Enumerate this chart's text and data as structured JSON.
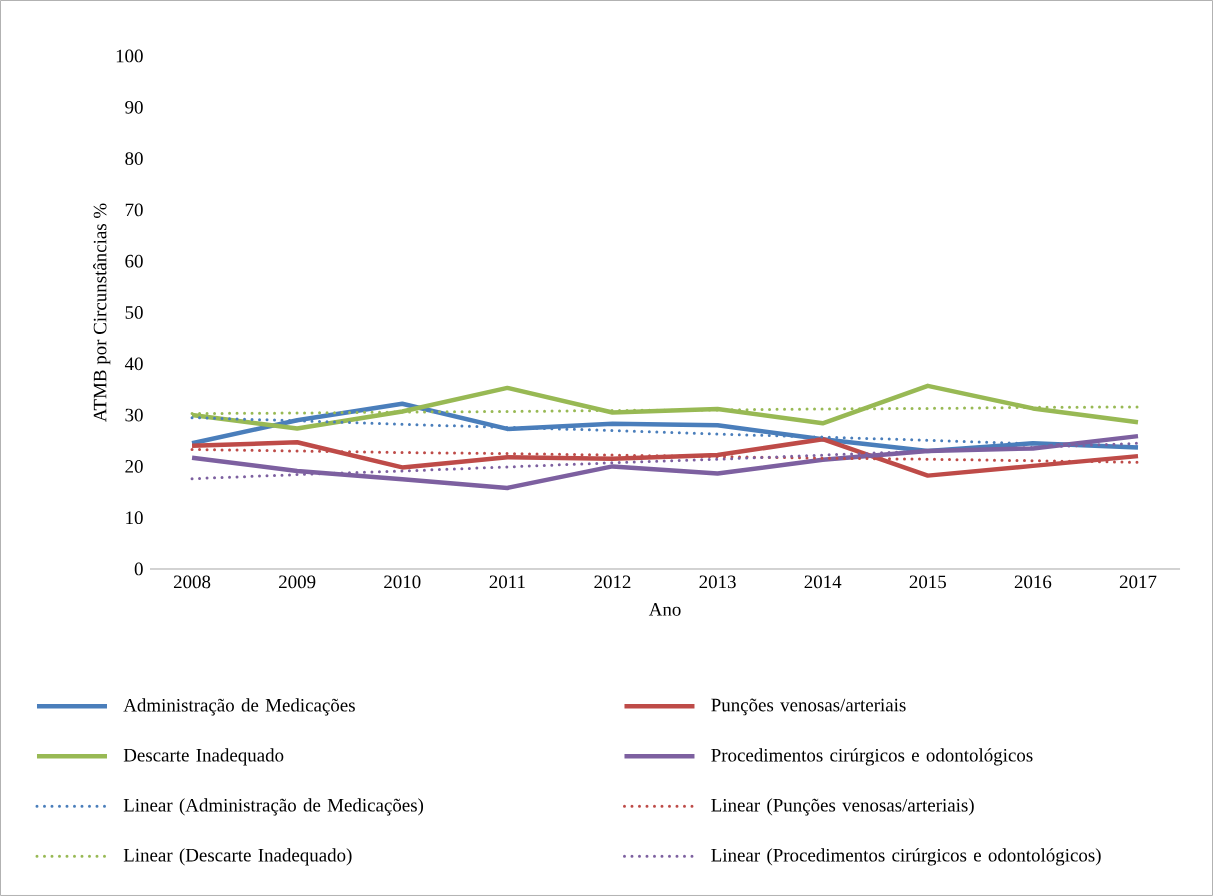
{
  "chart_data": {
    "type": "line",
    "xlabel": "Ano",
    "ylabel": "ATMB por Circunstâncias %",
    "x": [
      2008,
      2009,
      2010,
      2011,
      2012,
      2013,
      2014,
      2015,
      2016,
      2017
    ],
    "xlim": [
      2007.6,
      2017.4
    ],
    "xticks": [
      2008,
      2009,
      2010,
      2011,
      2012,
      2013,
      2014,
      2015,
      2016,
      2017
    ],
    "ylim": [
      0,
      100
    ],
    "yticks": [
      0,
      10,
      20,
      30,
      40,
      50,
      60,
      70,
      80,
      90,
      100
    ],
    "grid": false,
    "legend": "bottom",
    "marker": "none",
    "series": [
      {
        "name": "Administração de Medicações",
        "color": "#4a7ebb",
        "line_style": "solid",
        "values": [
          24.5,
          29,
          32.2,
          27.3,
          28.3,
          28,
          25.3,
          23,
          24.5,
          23.7
        ]
      },
      {
        "name": "Punções venosas/arteriais",
        "color": "#be4b48",
        "line_style": "solid",
        "values": [
          24,
          24.7,
          19.8,
          21.8,
          21.5,
          22.2,
          25.3,
          18.2,
          20.1,
          22
        ]
      },
      {
        "name": "Descarte Inadequado",
        "color": "#98b954",
        "line_style": "solid",
        "values": [
          30,
          27.4,
          30.7,
          35.3,
          30.5,
          31.2,
          28.4,
          35.7,
          31.3,
          28.6
        ]
      },
      {
        "name": "Procedimentos cirúrgicos e odontológicos",
        "color": "#7d60a0",
        "line_style": "solid",
        "values": [
          21.7,
          19.1,
          17.5,
          15.8,
          20,
          18.6,
          21.3,
          23,
          23.5,
          25.9
        ]
      },
      {
        "name": "Linear (Administração de Medicações)",
        "color": "#4a7ebb",
        "line_style": "dotted",
        "values": [
          29.5,
          28.9,
          28.2,
          27.6,
          27.0,
          26.3,
          25.7,
          25.1,
          24.4,
          23.8
        ]
      },
      {
        "name": "Linear (Punções venosas/arteriais)",
        "color": "#be4b48",
        "line_style": "dotted",
        "values": [
          23.3,
          23.0,
          22.7,
          22.5,
          22.2,
          21.9,
          21.6,
          21.4,
          21.1,
          20.8
        ]
      },
      {
        "name": "Linear (Descarte Inadequado)",
        "color": "#98b954",
        "line_style": "dotted",
        "values": [
          30.3,
          30.4,
          30.6,
          30.7,
          30.9,
          31.0,
          31.2,
          31.3,
          31.5,
          31.6
        ]
      },
      {
        "name": "Linear (Procedimentos cirúrgicos e odontológicos)",
        "color": "#7d60a0",
        "line_style": "dotted",
        "values": [
          17.6,
          18.4,
          19.1,
          19.9,
          20.7,
          21.4,
          22.2,
          23.0,
          23.7,
          24.5
        ]
      }
    ]
  }
}
